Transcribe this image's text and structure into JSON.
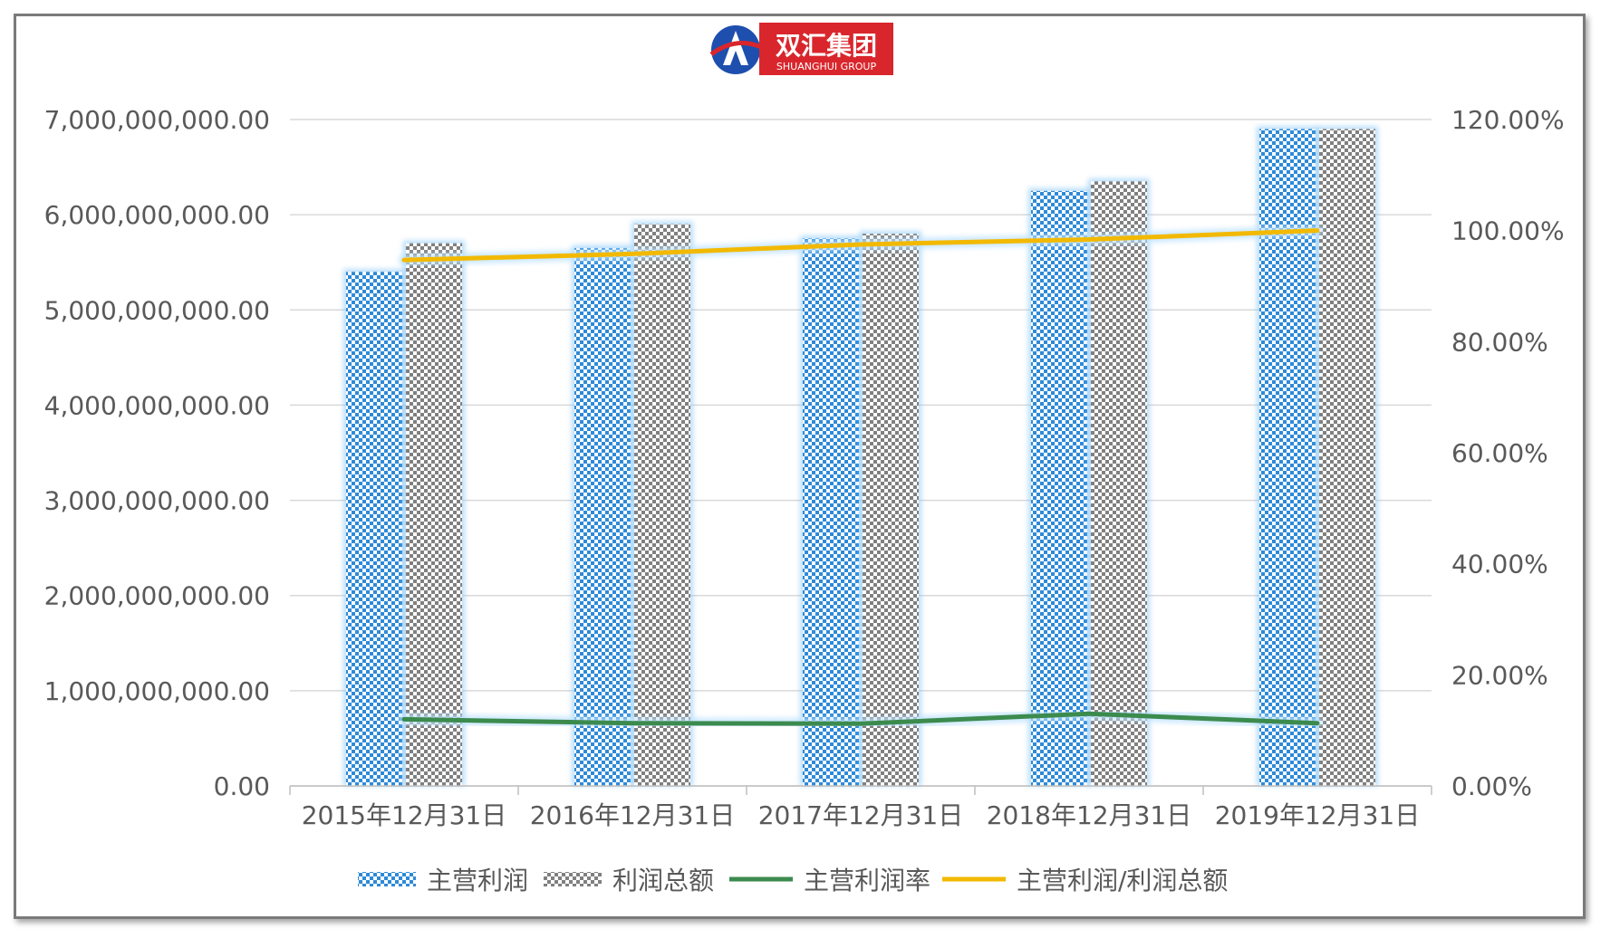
{
  "logo": {
    "text_cn": "双汇集团",
    "text_en": "SHUANGHUI GROUP"
  },
  "chart_data": {
    "type": "bar",
    "categories": [
      "2015年12月31日",
      "2016年12月31日",
      "2017年12月31日",
      "2018年12月31日",
      "2019年12月31日"
    ],
    "series": [
      {
        "name": "主营利润",
        "type": "bar",
        "axis": "left",
        "color": "#2e8ad8",
        "values": [
          5400000000,
          5650000000,
          5750000000,
          6250000000,
          6900000000
        ]
      },
      {
        "name": "利润总额",
        "type": "bar",
        "axis": "left",
        "color": "#7f7f7f",
        "values": [
          5700000000,
          5900000000,
          5800000000,
          6350000000,
          6900000000
        ]
      },
      {
        "name": "主营利润率",
        "type": "line",
        "axis": "right",
        "color": "#3c8b4e",
        "values": [
          0.12,
          0.113,
          0.112,
          0.13,
          0.113
        ]
      },
      {
        "name": "主营利润/利润总额",
        "type": "line",
        "axis": "right",
        "color": "#f2b900",
        "values": [
          0.947,
          0.958,
          0.975,
          0.984,
          1.0
        ]
      }
    ],
    "y_left": {
      "ylim": [
        0,
        7000000000
      ],
      "ticks": [
        "0.00",
        "1,000,000,000.00",
        "2,000,000,000.00",
        "3,000,000,000.00",
        "4,000,000,000.00",
        "5,000,000,000.00",
        "6,000,000,000.00",
        "7,000,000,000.00"
      ]
    },
    "y_right": {
      "ylim": [
        0,
        1.2
      ],
      "ticks": [
        "0.00%",
        "20.00%",
        "40.00%",
        "60.00%",
        "80.00%",
        "100.00%",
        "120.00%"
      ]
    },
    "grid": true,
    "legend_position": "bottom"
  }
}
